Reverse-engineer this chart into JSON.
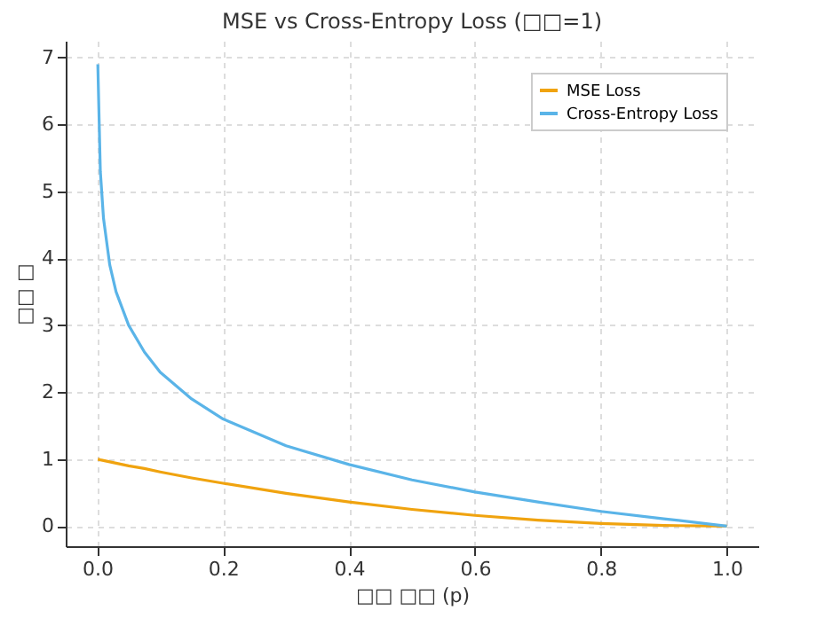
{
  "chart_data": {
    "type": "line",
    "title": "MSE vs Cross-Entropy Loss (□□=1)",
    "xlabel": "□□ □□ (p)",
    "ylabel": "□□ □",
    "x": [
      0.001,
      0.005,
      0.01,
      0.02,
      0.03,
      0.05,
      0.075,
      0.1,
      0.15,
      0.2,
      0.3,
      0.4,
      0.5,
      0.6,
      0.7,
      0.8,
      0.9,
      1.0
    ],
    "series": [
      {
        "name": "MSE Loss",
        "color": "#f0a30f",
        "values": [
          1.0,
          0.99,
          0.98,
          0.96,
          0.94,
          0.9,
          0.86,
          0.81,
          0.72,
          0.64,
          0.49,
          0.36,
          0.25,
          0.16,
          0.09,
          0.04,
          0.01,
          0.0
        ]
      },
      {
        "name": "Cross-Entropy Loss",
        "color": "#5ab4e8",
        "values": [
          6.9,
          5.3,
          4.6,
          3.9,
          3.5,
          3.0,
          2.6,
          2.3,
          1.9,
          1.6,
          1.2,
          0.92,
          0.69,
          0.51,
          0.36,
          0.22,
          0.11,
          0.0
        ]
      }
    ],
    "xlim": [
      -0.05,
      1.05
    ],
    "ylim": [
      -0.3,
      7.25
    ],
    "xticks": [
      {
        "value": 0,
        "label": "0.0"
      },
      0.2,
      0.4,
      0.6,
      0.8,
      {
        "value": 1,
        "label": "1.0"
      }
    ],
    "yticks": [
      0,
      1,
      2,
      3,
      4,
      5,
      6,
      7
    ],
    "grid": true,
    "legend": "top right",
    "line_style": "solid"
  }
}
